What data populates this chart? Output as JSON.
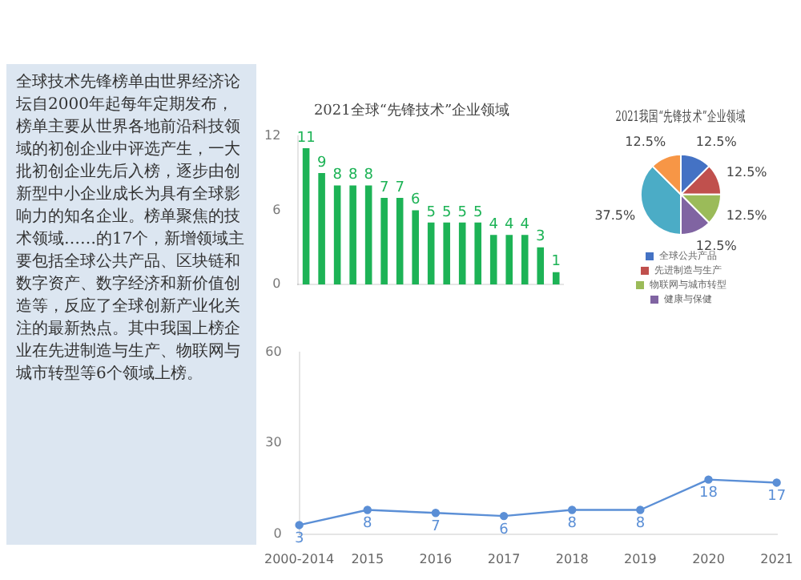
{
  "chart_data": [
    {
      "type": "other",
      "annotations": [
        "全球技术先锋榜单由世界经济论坛自2000年起每年定期发布，榜单主要从世界各地前沿科技领域的初创企业中评选产生，一大批初创企业先后入榜，逐步由创新型中小企业成长为具有全球影响力的知名企业。榜单聚焦的技术领域……的17个，新增领域主要包括全球公共产品、区块链和数字资产、数字经济和新价值创造等，反应了全球创新产业化关注的最新热点。其中我国上榜企业在先进制造与生产、物联网与城市转型等6个领域上榜。"
      ]
    },
    {
      "type": "bar",
      "title": "2021全球“先锋技术”企业领域",
      "categories": [
        null,
        null,
        null,
        null,
        null,
        null,
        null,
        null,
        null,
        null,
        null,
        null,
        null,
        null,
        null,
        null,
        null
      ],
      "values": [
        11,
        9,
        8,
        8,
        8,
        7,
        7,
        6,
        5,
        5,
        5,
        5,
        4,
        4,
        4,
        3,
        1
      ],
      "color": "#1db356",
      "ylim": [
        0,
        12
      ],
      "yticks": [
        0,
        6,
        12
      ],
      "data_labels": true,
      "grid": false
    },
    {
      "type": "pie",
      "title": "2021我国“先锋技术”企业领域",
      "categories": [
        "全球公共产品",
        "先进制造与生产",
        "物联网与城市转型",
        "健康与保健",
        null,
        null
      ],
      "values": [
        12.5,
        12.5,
        12.5,
        12.5,
        37.5,
        12.5
      ],
      "value_labels": [
        "12.5%",
        "12.5%",
        "12.5%",
        "12.5%",
        "37.5%",
        "12.5%"
      ],
      "colors": [
        "#4472c4",
        "#c0504d",
        "#9bbb59",
        "#8064a2",
        "#4bacc6",
        "#f79646"
      ],
      "legend": "bottom"
    },
    {
      "type": "line",
      "categories": [
        "2000-2014",
        "2015",
        "2016",
        "2017",
        "2018",
        "2019",
        "2020",
        "2021"
      ],
      "values": [
        3,
        8,
        7,
        6,
        8,
        8,
        18,
        17
      ],
      "color": "#5b8fd6",
      "ylim": [
        0,
        60
      ],
      "yticks": [
        0,
        30,
        60
      ],
      "data_labels": true,
      "marker": "circle",
      "grid": false
    }
  ]
}
